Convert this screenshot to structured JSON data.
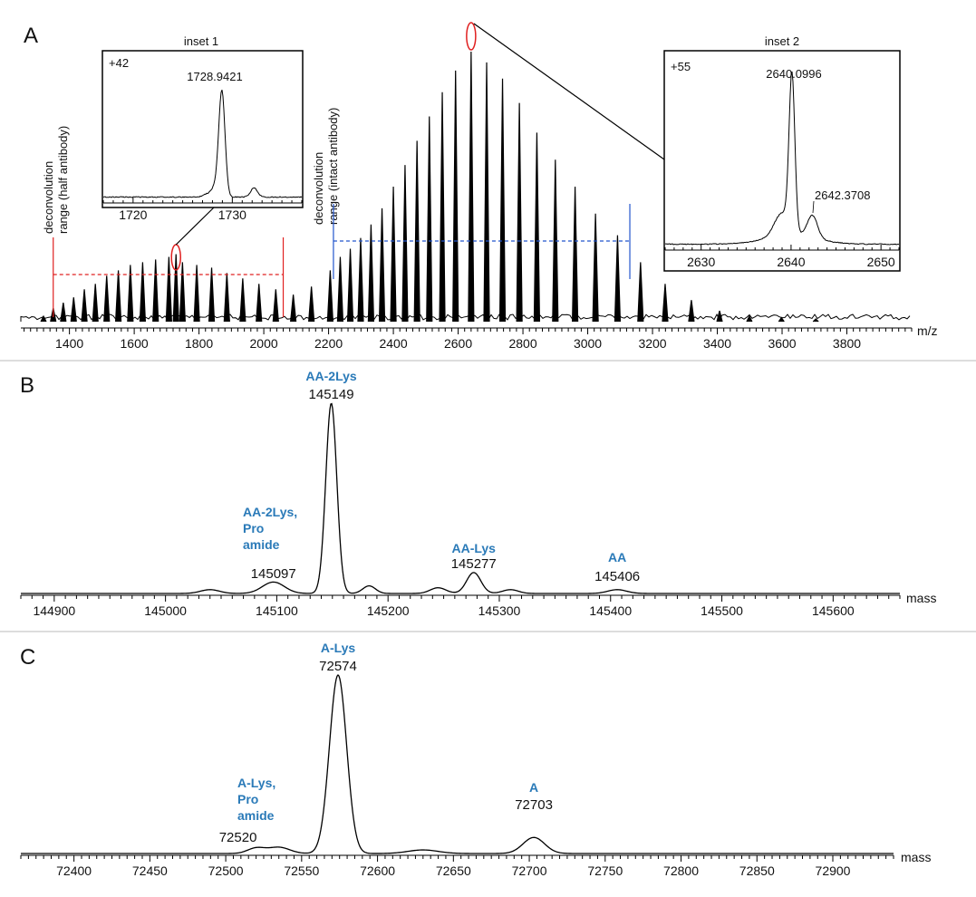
{
  "colors": {
    "accent_red": "#e02020",
    "accent_blue": "#2255cc",
    "label_blue": "#2a7ab8",
    "trace": "#000000",
    "separator": "#bbbbbb"
  },
  "chart_data": [
    {
      "id": "A",
      "panel_label": "A",
      "type": "line",
      "title": "",
      "xlabel": "m/z",
      "xlim": [
        1250,
        4000
      ],
      "xticks": [
        1400,
        1600,
        1800,
        2000,
        2200,
        2400,
        2600,
        2800,
        3000,
        3200,
        3400,
        3600,
        3800
      ],
      "peaks": [
        {
          "x": 1320,
          "y": 0.02
        },
        {
          "x": 1350,
          "y": 0.05
        },
        {
          "x": 1381,
          "y": 0.07
        },
        {
          "x": 1413,
          "y": 0.09
        },
        {
          "x": 1446,
          "y": 0.12
        },
        {
          "x": 1480,
          "y": 0.14
        },
        {
          "x": 1515,
          "y": 0.17
        },
        {
          "x": 1551,
          "y": 0.19
        },
        {
          "x": 1588,
          "y": 0.21
        },
        {
          "x": 1626,
          "y": 0.22
        },
        {
          "x": 1666,
          "y": 0.23
        },
        {
          "x": 1707,
          "y": 0.24
        },
        {
          "x": 1729,
          "y": 0.25
        },
        {
          "x": 1749,
          "y": 0.22
        },
        {
          "x": 1793,
          "y": 0.21
        },
        {
          "x": 1839,
          "y": 0.2
        },
        {
          "x": 1886,
          "y": 0.18
        },
        {
          "x": 1935,
          "y": 0.16
        },
        {
          "x": 1985,
          "y": 0.14
        },
        {
          "x": 2037,
          "y": 0.12
        },
        {
          "x": 2091,
          "y": 0.1
        },
        {
          "x": 2147,
          "y": 0.13
        },
        {
          "x": 2205,
          "y": 0.19
        },
        {
          "x": 2236,
          "y": 0.24
        },
        {
          "x": 2267,
          "y": 0.27
        },
        {
          "x": 2299,
          "y": 0.31
        },
        {
          "x": 2331,
          "y": 0.36
        },
        {
          "x": 2365,
          "y": 0.42
        },
        {
          "x": 2400,
          "y": 0.5
        },
        {
          "x": 2436,
          "y": 0.58
        },
        {
          "x": 2473,
          "y": 0.67
        },
        {
          "x": 2511,
          "y": 0.76
        },
        {
          "x": 2551,
          "y": 0.85
        },
        {
          "x": 2592,
          "y": 0.93
        },
        {
          "x": 2640,
          "y": 1.0
        },
        {
          "x": 2688,
          "y": 0.96
        },
        {
          "x": 2737,
          "y": 0.9
        },
        {
          "x": 2789,
          "y": 0.81
        },
        {
          "x": 2843,
          "y": 0.7
        },
        {
          "x": 2900,
          "y": 0.6
        },
        {
          "x": 2961,
          "y": 0.5
        },
        {
          "x": 3024,
          "y": 0.4
        },
        {
          "x": 3092,
          "y": 0.32
        },
        {
          "x": 3163,
          "y": 0.22
        },
        {
          "x": 3239,
          "y": 0.14
        },
        {
          "x": 3320,
          "y": 0.08
        },
        {
          "x": 3407,
          "y": 0.04
        },
        {
          "x": 3499,
          "y": 0.02
        },
        {
          "x": 3598,
          "y": 0.015
        },
        {
          "x": 3704,
          "y": 0.01
        }
      ],
      "annotations": {
        "deconv_half": "deconvolution range (half antibody)",
        "deconv_intact": "deconvolution range (intact antibody)",
        "half_range": [
          1350,
          2060
        ],
        "intact_range": [
          2215,
          3130
        ]
      },
      "insets": [
        {
          "title": "inset 1",
          "charge": "+42",
          "peak_label": "1728.9421",
          "peak_x": 1728.9421,
          "xlim": [
            1717,
            1737
          ],
          "xticks": [
            1720,
            1730
          ]
        },
        {
          "title": "inset 2",
          "charge": "+55",
          "peak_label": "2640.0996",
          "peak_x": 2640.0996,
          "peak2_label": "2642.3708",
          "peak2_x": 2642.3708,
          "xlim": [
            2626,
            2652
          ],
          "xticks": [
            2630,
            2640,
            2650
          ]
        }
      ]
    },
    {
      "id": "B",
      "panel_label": "B",
      "type": "line",
      "xlabel": "mass",
      "xlim": [
        144870,
        145660
      ],
      "xticks": [
        144900,
        145000,
        145100,
        145200,
        145300,
        145400,
        145500,
        145600
      ],
      "peaks": [
        {
          "x": 145040,
          "y": 0.02,
          "w": 12
        },
        {
          "x": 145097,
          "y": 0.06,
          "w": 14
        },
        {
          "x": 145149,
          "y": 1.0,
          "w": 7
        },
        {
          "x": 145183,
          "y": 0.04,
          "w": 8
        },
        {
          "x": 145245,
          "y": 0.03,
          "w": 10
        },
        {
          "x": 145277,
          "y": 0.11,
          "w": 9
        },
        {
          "x": 145310,
          "y": 0.02,
          "w": 10
        },
        {
          "x": 145406,
          "y": 0.02,
          "w": 12
        }
      ],
      "labels": [
        {
          "name": "AA-2Lys, Pro amide",
          "lines": [
            "AA-2Lys,",
            "Pro",
            "amide"
          ],
          "mass": "145097",
          "x": 145097
        },
        {
          "name": "AA-2Lys",
          "lines": [
            "AA-2Lys"
          ],
          "mass": "145149",
          "x": 145149
        },
        {
          "name": "AA-Lys",
          "lines": [
            "AA-Lys"
          ],
          "mass": "145277",
          "x": 145277
        },
        {
          "name": "AA",
          "lines": [
            "AA"
          ],
          "mass": "145406",
          "x": 145406
        }
      ]
    },
    {
      "id": "C",
      "panel_label": "C",
      "type": "line",
      "xlabel": "mass",
      "xlim": [
        72365,
        72940
      ],
      "xticks": [
        72400,
        72450,
        72500,
        72550,
        72600,
        72650,
        72700,
        72750,
        72800,
        72850,
        72900
      ],
      "peaks": [
        {
          "x": 72520,
          "y": 0.03,
          "w": 8
        },
        {
          "x": 72535,
          "y": 0.035,
          "w": 10
        },
        {
          "x": 72574,
          "y": 1.0,
          "w": 8
        },
        {
          "x": 72630,
          "y": 0.02,
          "w": 14
        },
        {
          "x": 72703,
          "y": 0.09,
          "w": 10
        }
      ],
      "labels": [
        {
          "name": "A-Lys, Pro amide",
          "lines": [
            "A-Lys,",
            "Pro",
            "amide"
          ],
          "mass": "72520",
          "x": 72520
        },
        {
          "name": "A-Lys",
          "lines": [
            "A-Lys"
          ],
          "mass": "72574",
          "x": 72574
        },
        {
          "name": "A",
          "lines": [
            "A"
          ],
          "mass": "72703",
          "x": 72703
        }
      ]
    }
  ]
}
